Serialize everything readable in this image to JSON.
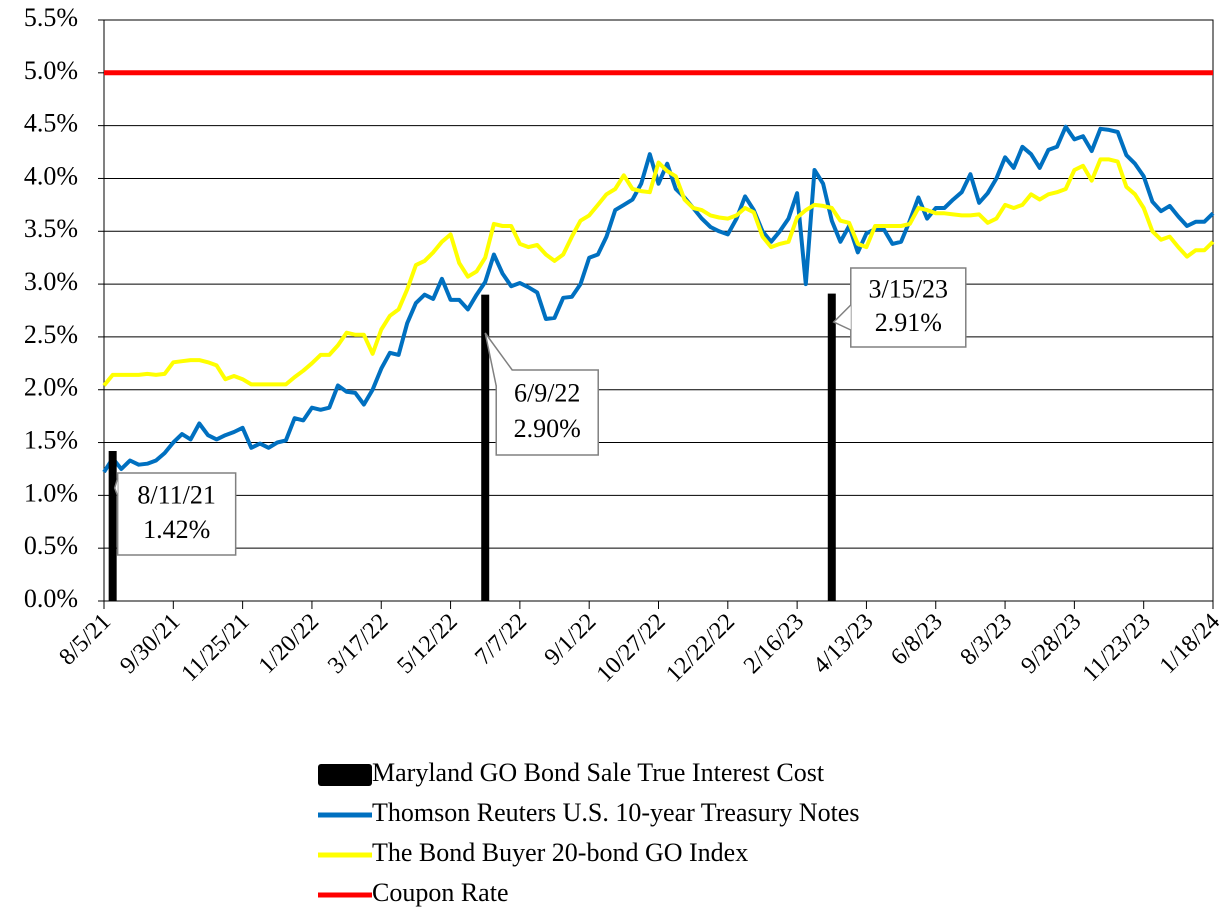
{
  "chart_data": {
    "type": "line",
    "categories": [
      "8/5/21",
      null,
      null,
      null,
      null,
      null,
      null,
      null,
      "9/30/21",
      null,
      null,
      null,
      null,
      null,
      null,
      null,
      "11/25/21",
      null,
      null,
      null,
      null,
      null,
      null,
      null,
      "1/20/22",
      null,
      null,
      null,
      null,
      null,
      null,
      null,
      "3/17/22",
      null,
      null,
      null,
      null,
      null,
      null,
      null,
      "5/12/22",
      null,
      null,
      null,
      null,
      null,
      null,
      null,
      "7/7/22",
      null,
      null,
      null,
      null,
      null,
      null,
      null,
      "9/1/22",
      null,
      null,
      null,
      null,
      null,
      null,
      null,
      "10/27/22",
      null,
      null,
      null,
      null,
      null,
      null,
      null,
      "12/22/22",
      null,
      null,
      null,
      null,
      null,
      null,
      null,
      "2/16/23",
      null,
      null,
      null,
      null,
      null,
      null,
      null,
      "4/13/23",
      null,
      null,
      null,
      null,
      null,
      null,
      null,
      "6/8/23",
      null,
      null,
      null,
      null,
      null,
      null,
      null,
      "8/3/23",
      null,
      null,
      null,
      null,
      null,
      null,
      null,
      "9/28/23",
      null,
      null,
      null,
      null,
      null,
      null,
      null,
      "11/23/23",
      null,
      null,
      null,
      null,
      null,
      null,
      null,
      "1/18/24"
    ],
    "ylim": [
      0,
      5.5
    ],
    "yticks": [
      {
        "value": 0,
        "label": "0.0%"
      },
      {
        "value": 0.5,
        "label": "0.5%"
      },
      {
        "value": 1,
        "label": "1.0%"
      },
      {
        "value": 1.5,
        "label": "1.5%"
      },
      {
        "value": 2,
        "label": "2.0%"
      },
      {
        "value": 2.5,
        "label": "2.5%"
      },
      {
        "value": 3,
        "label": "3.0%"
      },
      {
        "value": 3.5,
        "label": "3.5%"
      },
      {
        "value": 4,
        "label": "4.0%"
      },
      {
        "value": 4.5,
        "label": "4.5%"
      },
      {
        "value": 5,
        "label": "5.0%"
      },
      {
        "value": 5.5,
        "label": "5.5%"
      }
    ],
    "grid": true,
    "legend": "bottom",
    "series": [
      {
        "name": "Maryland GO Bond Sale True Interest Cost",
        "type": "bar",
        "color": "#000000",
        "values": [
          null,
          1.42,
          null,
          null,
          null,
          null,
          null,
          null,
          null,
          null,
          null,
          null,
          null,
          null,
          null,
          null,
          null,
          null,
          null,
          null,
          null,
          null,
          null,
          null,
          null,
          null,
          null,
          null,
          null,
          null,
          null,
          null,
          null,
          null,
          null,
          null,
          null,
          null,
          null,
          null,
          null,
          null,
          null,
          null,
          2.9,
          null,
          null,
          null,
          null,
          null,
          null,
          null,
          null,
          null,
          null,
          null,
          null,
          null,
          null,
          null,
          null,
          null,
          null,
          null,
          null,
          null,
          null,
          null,
          null,
          null,
          null,
          null,
          null,
          null,
          null,
          null,
          null,
          null,
          null,
          null,
          null,
          null,
          null,
          null,
          2.91,
          null,
          null,
          null,
          null,
          null,
          null,
          null,
          null,
          null,
          null,
          null,
          null,
          null,
          null,
          null,
          null,
          null,
          null,
          null,
          null,
          null,
          null,
          null,
          null,
          null,
          null,
          null,
          null,
          null,
          null,
          null,
          null,
          null,
          null,
          null,
          null,
          null,
          null,
          null,
          null,
          null,
          null,
          null,
          null
        ],
        "value_labels": [
          null,
          "1.42%",
          null,
          null,
          null,
          null,
          null,
          null,
          null,
          null,
          null,
          null,
          null,
          null,
          null,
          null,
          null,
          null,
          null,
          null,
          null,
          null,
          null,
          null,
          null,
          null,
          null,
          null,
          null,
          null,
          null,
          null,
          null,
          null,
          null,
          null,
          null,
          null,
          null,
          null,
          null,
          null,
          null,
          null,
          "2.90%",
          null,
          null,
          null,
          null,
          null,
          null,
          null,
          null,
          null,
          null,
          null,
          null,
          null,
          null,
          null,
          null,
          null,
          null,
          null,
          null,
          null,
          null,
          null,
          null,
          null,
          null,
          null,
          null,
          null,
          null,
          null,
          null,
          null,
          null,
          null,
          null,
          null,
          null,
          null,
          "2.91%",
          null,
          null,
          null,
          null,
          null,
          null,
          null,
          null,
          null,
          null,
          null,
          null,
          null,
          null,
          null,
          null,
          null,
          null,
          null,
          null,
          null,
          null,
          null,
          null,
          null,
          null,
          null,
          null,
          null,
          null,
          null,
          null,
          null,
          null,
          null,
          null,
          null,
          null,
          null,
          null,
          null,
          null,
          null,
          null
        ],
        "date_labels": [
          null,
          "8/11/21",
          null,
          null,
          null,
          null,
          null,
          null,
          null,
          null,
          null,
          null,
          null,
          null,
          null,
          null,
          null,
          null,
          null,
          null,
          null,
          null,
          null,
          null,
          null,
          null,
          null,
          null,
          null,
          null,
          null,
          null,
          null,
          null,
          null,
          null,
          null,
          null,
          null,
          null,
          null,
          null,
          null,
          null,
          "6/9/22",
          null,
          null,
          null,
          null,
          null,
          null,
          null,
          null,
          null,
          null,
          null,
          null,
          null,
          null,
          null,
          null,
          null,
          null,
          null,
          null,
          null,
          null,
          null,
          null,
          null,
          null,
          null,
          null,
          null,
          null,
          null,
          null,
          null,
          null,
          null,
          null,
          null,
          null,
          null,
          "3/15/23",
          null,
          null,
          null,
          null,
          null,
          null,
          null,
          null,
          null,
          null,
          null,
          null,
          null,
          null,
          null,
          null,
          null,
          null,
          null,
          null,
          null,
          null,
          null,
          null,
          null,
          null,
          null,
          null,
          null,
          null,
          null,
          null,
          null,
          null,
          null,
          null,
          null,
          null,
          null,
          null,
          null,
          null,
          null,
          null
        ]
      },
      {
        "name": "Thomson Reuters U.S. 10-year Treasury Notes",
        "type": "line",
        "color": "#0070c0",
        "values": [
          1.22,
          1.35,
          1.25,
          1.33,
          1.29,
          1.3,
          1.33,
          1.4,
          1.5,
          1.58,
          1.53,
          1.68,
          1.57,
          1.53,
          1.57,
          1.6,
          1.64,
          1.45,
          1.49,
          1.45,
          1.5,
          1.52,
          1.73,
          1.71,
          1.83,
          1.81,
          1.83,
          2.04,
          1.98,
          1.97,
          1.86,
          2.0,
          2.2,
          2.35,
          2.33,
          2.63,
          2.82,
          2.9,
          2.86,
          3.05,
          2.85,
          2.85,
          2.76,
          2.9,
          3.02,
          3.28,
          3.1,
          2.98,
          3.01,
          2.97,
          2.92,
          2.67,
          2.68,
          2.87,
          2.88,
          3.0,
          3.25,
          3.28,
          3.45,
          3.7,
          3.75,
          3.8,
          3.95,
          4.23,
          3.95,
          4.14,
          3.9,
          3.82,
          3.72,
          3.62,
          3.54,
          3.5,
          3.47,
          3.62,
          3.83,
          3.7,
          3.5,
          3.4,
          3.5,
          3.62,
          3.86,
          3.0,
          4.08,
          3.95,
          3.6,
          3.4,
          3.55,
          3.3,
          3.48,
          3.52,
          3.52,
          3.38,
          3.4,
          3.6,
          3.82,
          3.62,
          3.72,
          3.72,
          3.8,
          3.87,
          4.04,
          3.77,
          3.86,
          4.0,
          4.2,
          4.1,
          4.3,
          4.23,
          4.1,
          4.27,
          4.3,
          4.49,
          4.37,
          4.4,
          4.26,
          4.47,
          4.46,
          4.44,
          4.22,
          4.14,
          4.02,
          3.78,
          3.69,
          3.74,
          3.64,
          3.55,
          3.59,
          3.59,
          3.67
        ]
      },
      {
        "name": "The Bond Buyer 20-bond GO Index",
        "type": "line",
        "color": "#ffff00",
        "values": [
          2.04,
          2.14,
          2.14,
          2.14,
          2.14,
          2.15,
          2.14,
          2.15,
          2.26,
          2.27,
          2.28,
          2.28,
          2.26,
          2.23,
          2.1,
          2.13,
          2.1,
          2.05,
          2.05,
          2.05,
          2.05,
          2.05,
          2.12,
          2.18,
          2.25,
          2.33,
          2.33,
          2.42,
          2.54,
          2.52,
          2.52,
          2.34,
          2.57,
          2.7,
          2.76,
          2.95,
          3.18,
          3.22,
          3.3,
          3.4,
          3.47,
          3.2,
          3.07,
          3.12,
          3.25,
          3.57,
          3.55,
          3.55,
          3.38,
          3.35,
          3.37,
          3.28,
          3.22,
          3.28,
          3.45,
          3.6,
          3.65,
          3.75,
          3.85,
          3.9,
          4.03,
          3.9,
          3.88,
          3.87,
          4.15,
          4.07,
          4.02,
          3.8,
          3.72,
          3.7,
          3.65,
          3.63,
          3.62,
          3.65,
          3.72,
          3.68,
          3.45,
          3.35,
          3.38,
          3.4,
          3.63,
          3.7,
          3.75,
          3.74,
          3.72,
          3.6,
          3.58,
          3.38,
          3.35,
          3.55,
          3.55,
          3.55,
          3.55,
          3.57,
          3.72,
          3.7,
          3.67,
          3.67,
          3.66,
          3.65,
          3.65,
          3.66,
          3.58,
          3.62,
          3.75,
          3.72,
          3.75,
          3.85,
          3.8,
          3.85,
          3.87,
          3.9,
          4.08,
          4.12,
          3.98,
          4.18,
          4.18,
          4.16,
          3.92,
          3.85,
          3.72,
          3.5,
          3.42,
          3.45,
          3.35,
          3.26,
          3.32,
          3.32,
          3.4
        ]
      },
      {
        "name": "Coupon Rate",
        "type": "line",
        "color": "#ff0000",
        "values": [
          5,
          5,
          5,
          5,
          5,
          5,
          5,
          5,
          5,
          5,
          5,
          5,
          5,
          5,
          5,
          5,
          5,
          5,
          5,
          5,
          5,
          5,
          5,
          5,
          5,
          5,
          5,
          5,
          5,
          5,
          5,
          5,
          5,
          5,
          5,
          5,
          5,
          5,
          5,
          5,
          5,
          5,
          5,
          5,
          5,
          5,
          5,
          5,
          5,
          5,
          5,
          5,
          5,
          5,
          5,
          5,
          5,
          5,
          5,
          5,
          5,
          5,
          5,
          5,
          5,
          5,
          5,
          5,
          5,
          5,
          5,
          5,
          5,
          5,
          5,
          5,
          5,
          5,
          5,
          5,
          5,
          5,
          5,
          5,
          5,
          5,
          5,
          5,
          5,
          5,
          5,
          5,
          5,
          5,
          5,
          5,
          5,
          5,
          5,
          5,
          5,
          5,
          5,
          5,
          5,
          5,
          5,
          5,
          5,
          5,
          5,
          5,
          5,
          5,
          5,
          5,
          5,
          5,
          5,
          5,
          5,
          5,
          5,
          5,
          5,
          5,
          5,
          5,
          5
        ]
      }
    ]
  }
}
